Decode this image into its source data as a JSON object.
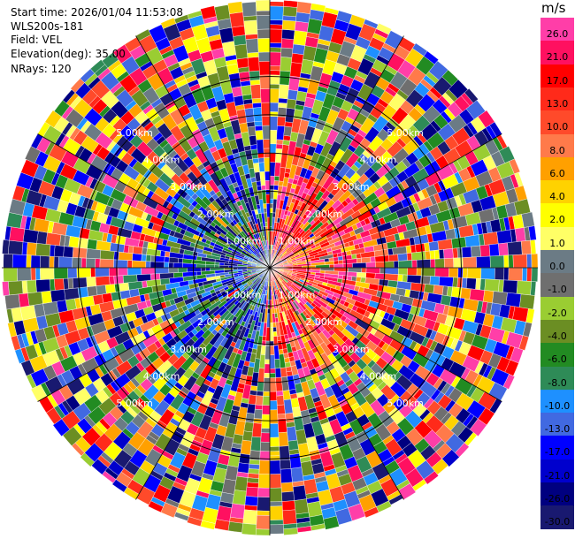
{
  "header": {
    "start_time": "Start time: 2026/01/04 11:53:08",
    "instrument": "WLS200s-181",
    "field": "Field: VEL",
    "elevation": "Elevation(deg): 35.00",
    "nrays": "NRays: 120"
  },
  "colorbar": {
    "unit": "m/s",
    "levels": [
      {
        "label": "26.0",
        "color": "#ff3ea8"
      },
      {
        "label": "21.0",
        "color": "#ff1060"
      },
      {
        "label": "17.0",
        "color": "#ff0000"
      },
      {
        "label": "13.0",
        "color": "#ff2a1a"
      },
      {
        "label": "10.0",
        "color": "#ff4a2a"
      },
      {
        "label": "8.0",
        "color": "#ff7a4a"
      },
      {
        "label": "6.0",
        "color": "#ffa000"
      },
      {
        "label": "4.0",
        "color": "#ffd200"
      },
      {
        "label": "2.0",
        "color": "#ffff00"
      },
      {
        "label": "1.0",
        "color": "#ffff66"
      },
      {
        "label": "0.0",
        "color": "#6b7b85"
      },
      {
        "label": "-1.0",
        "color": "#6f6f6f"
      },
      {
        "label": "-2.0",
        "color": "#9acd32"
      },
      {
        "label": "-4.0",
        "color": "#6b8e23"
      },
      {
        "label": "-6.0",
        "color": "#228b22"
      },
      {
        "label": "-8.0",
        "color": "#2e8b57"
      },
      {
        "label": "-10.0",
        "color": "#1e90ff"
      },
      {
        "label": "-13.0",
        "color": "#4169e1"
      },
      {
        "label": "-17.0",
        "color": "#0000ff"
      },
      {
        "label": "-21.0",
        "color": "#0000cd"
      },
      {
        "label": "-26.0",
        "color": "#000080"
      },
      {
        "label": "-30.0",
        "color": "#191970"
      }
    ]
  },
  "range_rings": [
    "1.00km",
    "2.00km",
    "3.00km",
    "4.00km",
    "5.00km"
  ],
  "chart_data": {
    "type": "heatmap",
    "projection": "polar PPI",
    "field": "VEL",
    "elevation_deg": 35.0,
    "n_rays": 120,
    "range_rings_km": [
      1,
      2,
      3,
      4,
      5
    ],
    "max_range_km": 7,
    "grid": true,
    "legend_position": "right",
    "value_range": [
      -30.0,
      26.0
    ],
    "pattern_summary": "near-range east half positive (red), west half negative (blue/green); outer ranges mixed noise"
  }
}
